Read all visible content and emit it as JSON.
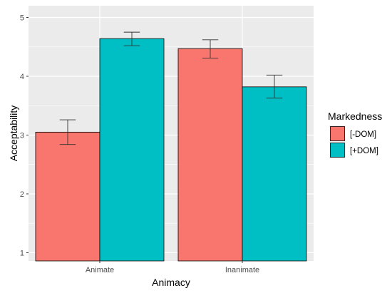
{
  "chart_data": {
    "type": "bar",
    "title": "",
    "xlabel": "Animacy",
    "ylabel": "Acceptability",
    "categories": [
      "Animate",
      "Inanimate"
    ],
    "series": [
      {
        "name": "[-DOM]",
        "color": "#F8766D",
        "values": [
          3.05,
          4.47
        ],
        "error_low": [
          2.84,
          4.31
        ],
        "error_high": [
          3.26,
          4.62
        ]
      },
      {
        "name": "[+DOM]",
        "color": "#00BFC4",
        "values": [
          4.64,
          3.82
        ],
        "error_low": [
          4.52,
          3.63
        ],
        "error_high": [
          4.75,
          4.02
        ]
      }
    ],
    "ylim": [
      0.86,
      5.2
    ],
    "bar_baseline": 0,
    "yticks": [
      1,
      2,
      3,
      4,
      5
    ],
    "grid": true,
    "panel_background": "#EBEBEB",
    "legend": {
      "title": "Markedness",
      "position": "right"
    }
  }
}
